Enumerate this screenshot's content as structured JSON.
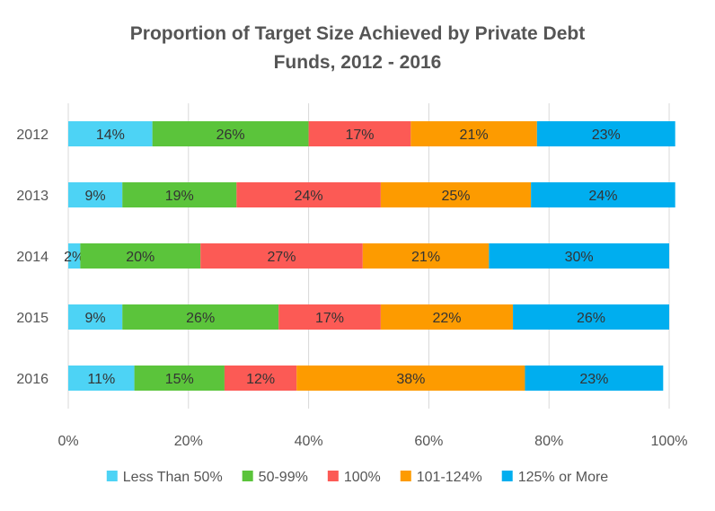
{
  "chart_data": {
    "type": "bar",
    "orientation": "horizontal",
    "stacked": true,
    "title": "Proportion of Target Size Achieved by Private Debt Funds, 2012 - 2016",
    "title_lines": [
      "Proportion of Target Size Achieved by Private Debt",
      "Funds, 2012 - 2016"
    ],
    "categories": [
      "2012",
      "2013",
      "2014",
      "2015",
      "2016"
    ],
    "series": [
      {
        "name": "Less Than 50%",
        "color": "#4dd3f5",
        "values": [
          14,
          9,
          2,
          9,
          11
        ]
      },
      {
        "name": "50-99%",
        "color": "#5bc43b",
        "values": [
          26,
          19,
          20,
          26,
          15
        ]
      },
      {
        "name": "100%",
        "color": "#fc5a55",
        "values": [
          17,
          24,
          27,
          17,
          12
        ]
      },
      {
        "name": "101-124%",
        "color": "#fd9b00",
        "values": [
          21,
          25,
          21,
          22,
          38
        ]
      },
      {
        "name": "125% or More",
        "color": "#00aeef",
        "values": [
          23,
          24,
          30,
          26,
          23
        ]
      }
    ],
    "xlim": [
      0,
      100
    ],
    "x_ticks": [
      "0%",
      "20%",
      "40%",
      "60%",
      "80%",
      "100%"
    ],
    "xlabel": "",
    "ylabel": "",
    "legend_position": "bottom",
    "grid": true,
    "value_suffix": "%"
  }
}
